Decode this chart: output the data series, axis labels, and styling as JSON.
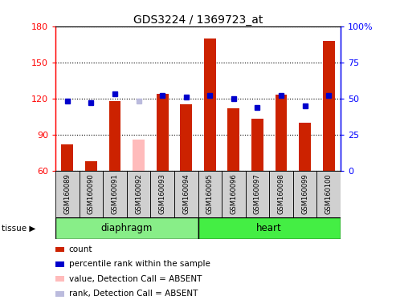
{
  "title": "GDS3224 / 1369723_at",
  "samples": [
    "GSM160089",
    "GSM160090",
    "GSM160091",
    "GSM160092",
    "GSM160093",
    "GSM160094",
    "GSM160095",
    "GSM160096",
    "GSM160097",
    "GSM160098",
    "GSM160099",
    "GSM160100"
  ],
  "count_values": [
    82,
    68,
    118,
    null,
    124,
    115,
    170,
    112,
    103,
    123,
    100,
    168
  ],
  "rank_values": [
    48,
    47,
    53,
    null,
    52,
    51,
    52,
    50,
    44,
    52,
    45,
    52
  ],
  "absent_value": [
    null,
    null,
    null,
    86,
    null,
    null,
    null,
    null,
    null,
    null,
    null,
    null
  ],
  "absent_rank": [
    null,
    null,
    null,
    48,
    null,
    null,
    null,
    null,
    null,
    null,
    null,
    null
  ],
  "ylim": [
    60,
    180
  ],
  "y2lim": [
    0,
    100
  ],
  "yticks": [
    60,
    90,
    120,
    150,
    180
  ],
  "y2ticks": [
    0,
    25,
    50,
    75,
    100
  ],
  "tissues": [
    "diaphragm",
    "diaphragm",
    "diaphragm",
    "diaphragm",
    "diaphragm",
    "diaphragm",
    "heart",
    "heart",
    "heart",
    "heart",
    "heart",
    "heart"
  ],
  "bar_color": "#cc2200",
  "rank_color": "#0000cc",
  "absent_bar_color": "#ffbbbb",
  "absent_rank_color": "#bbbbdd",
  "legend_items": [
    {
      "label": "count",
      "color": "#cc2200"
    },
    {
      "label": "percentile rank within the sample",
      "color": "#0000cc"
    },
    {
      "label": "value, Detection Call = ABSENT",
      "color": "#ffbbbb"
    },
    {
      "label": "rank, Detection Call = ABSENT",
      "color": "#bbbbdd"
    }
  ]
}
